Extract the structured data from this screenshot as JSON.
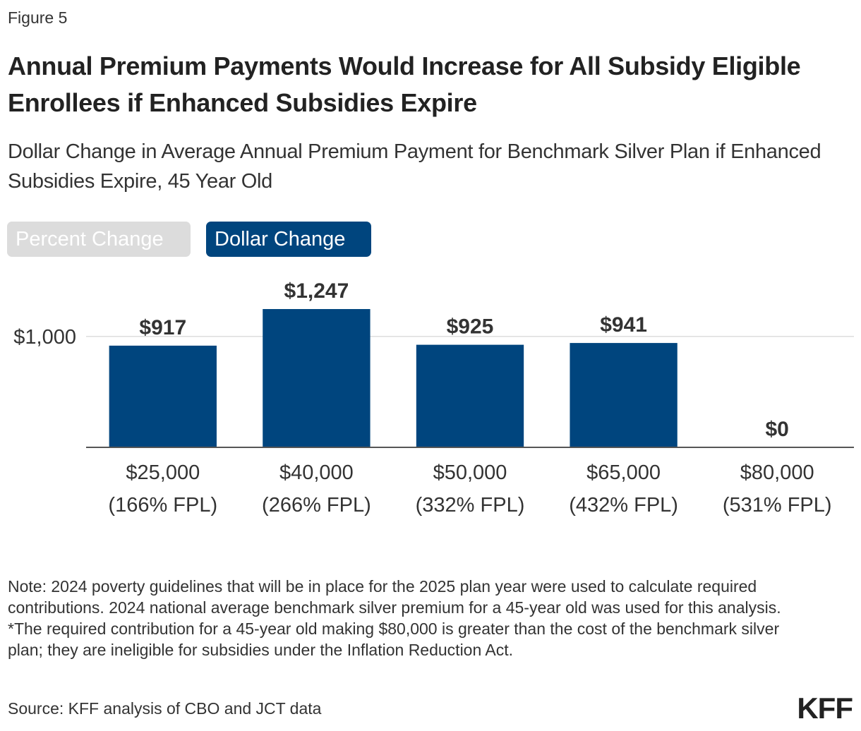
{
  "figure_label": "Figure 5",
  "title": "Annual Premium Payments Would Increase for All Subsidy Eligible Enrollees if Enhanced Subsidies Expire",
  "subtitle": "Dollar Change in Average Annual Premium Payment for Benchmark Silver Plan if Enhanced Subsidies Expire, 45 Year Old",
  "toggles": {
    "percent_label": "Percent Change",
    "dollar_label": "Dollar Change",
    "active": "Dollar Change"
  },
  "colors": {
    "bar": "#00457e",
    "toggle_active": "#00457e",
    "toggle_inactive": "#dcdcdc",
    "gridline": "#cccccc",
    "axis": "#555555"
  },
  "chart_data": {
    "type": "bar",
    "categories": [
      [
        "$25,000",
        "(166% FPL)"
      ],
      [
        "$40,000",
        "(266% FPL)"
      ],
      [
        "$50,000",
        "(332% FPL)"
      ],
      [
        "$65,000",
        "(432% FPL)"
      ],
      [
        "$80,000",
        "(531% FPL)"
      ]
    ],
    "values": [
      917,
      1247,
      925,
      941,
      0
    ],
    "data_labels": [
      "$917",
      "$1,247",
      "$925",
      "$941",
      "$0"
    ],
    "ylim": [
      0,
      1247
    ],
    "yticks": [
      1000
    ],
    "ytick_labels": [
      "$1,000"
    ],
    "xlabel": "",
    "ylabel": "",
    "grid": true,
    "legend": "none"
  },
  "note": [
    "Note: 2024 poverty guidelines that will be in place for the 2025 plan year were used to calculate required contributions. 2024 national average benchmark silver premium for a 45-year old was used for this analysis.",
    "*The required contribution for a 45-year old making $80,000 is greater than the cost of the benchmark silver plan; they are ineligible for subsidies under the Inflation Reduction Act."
  ],
  "source": "Source: KFF analysis of CBO and JCT data",
  "logo_text": "KFF"
}
